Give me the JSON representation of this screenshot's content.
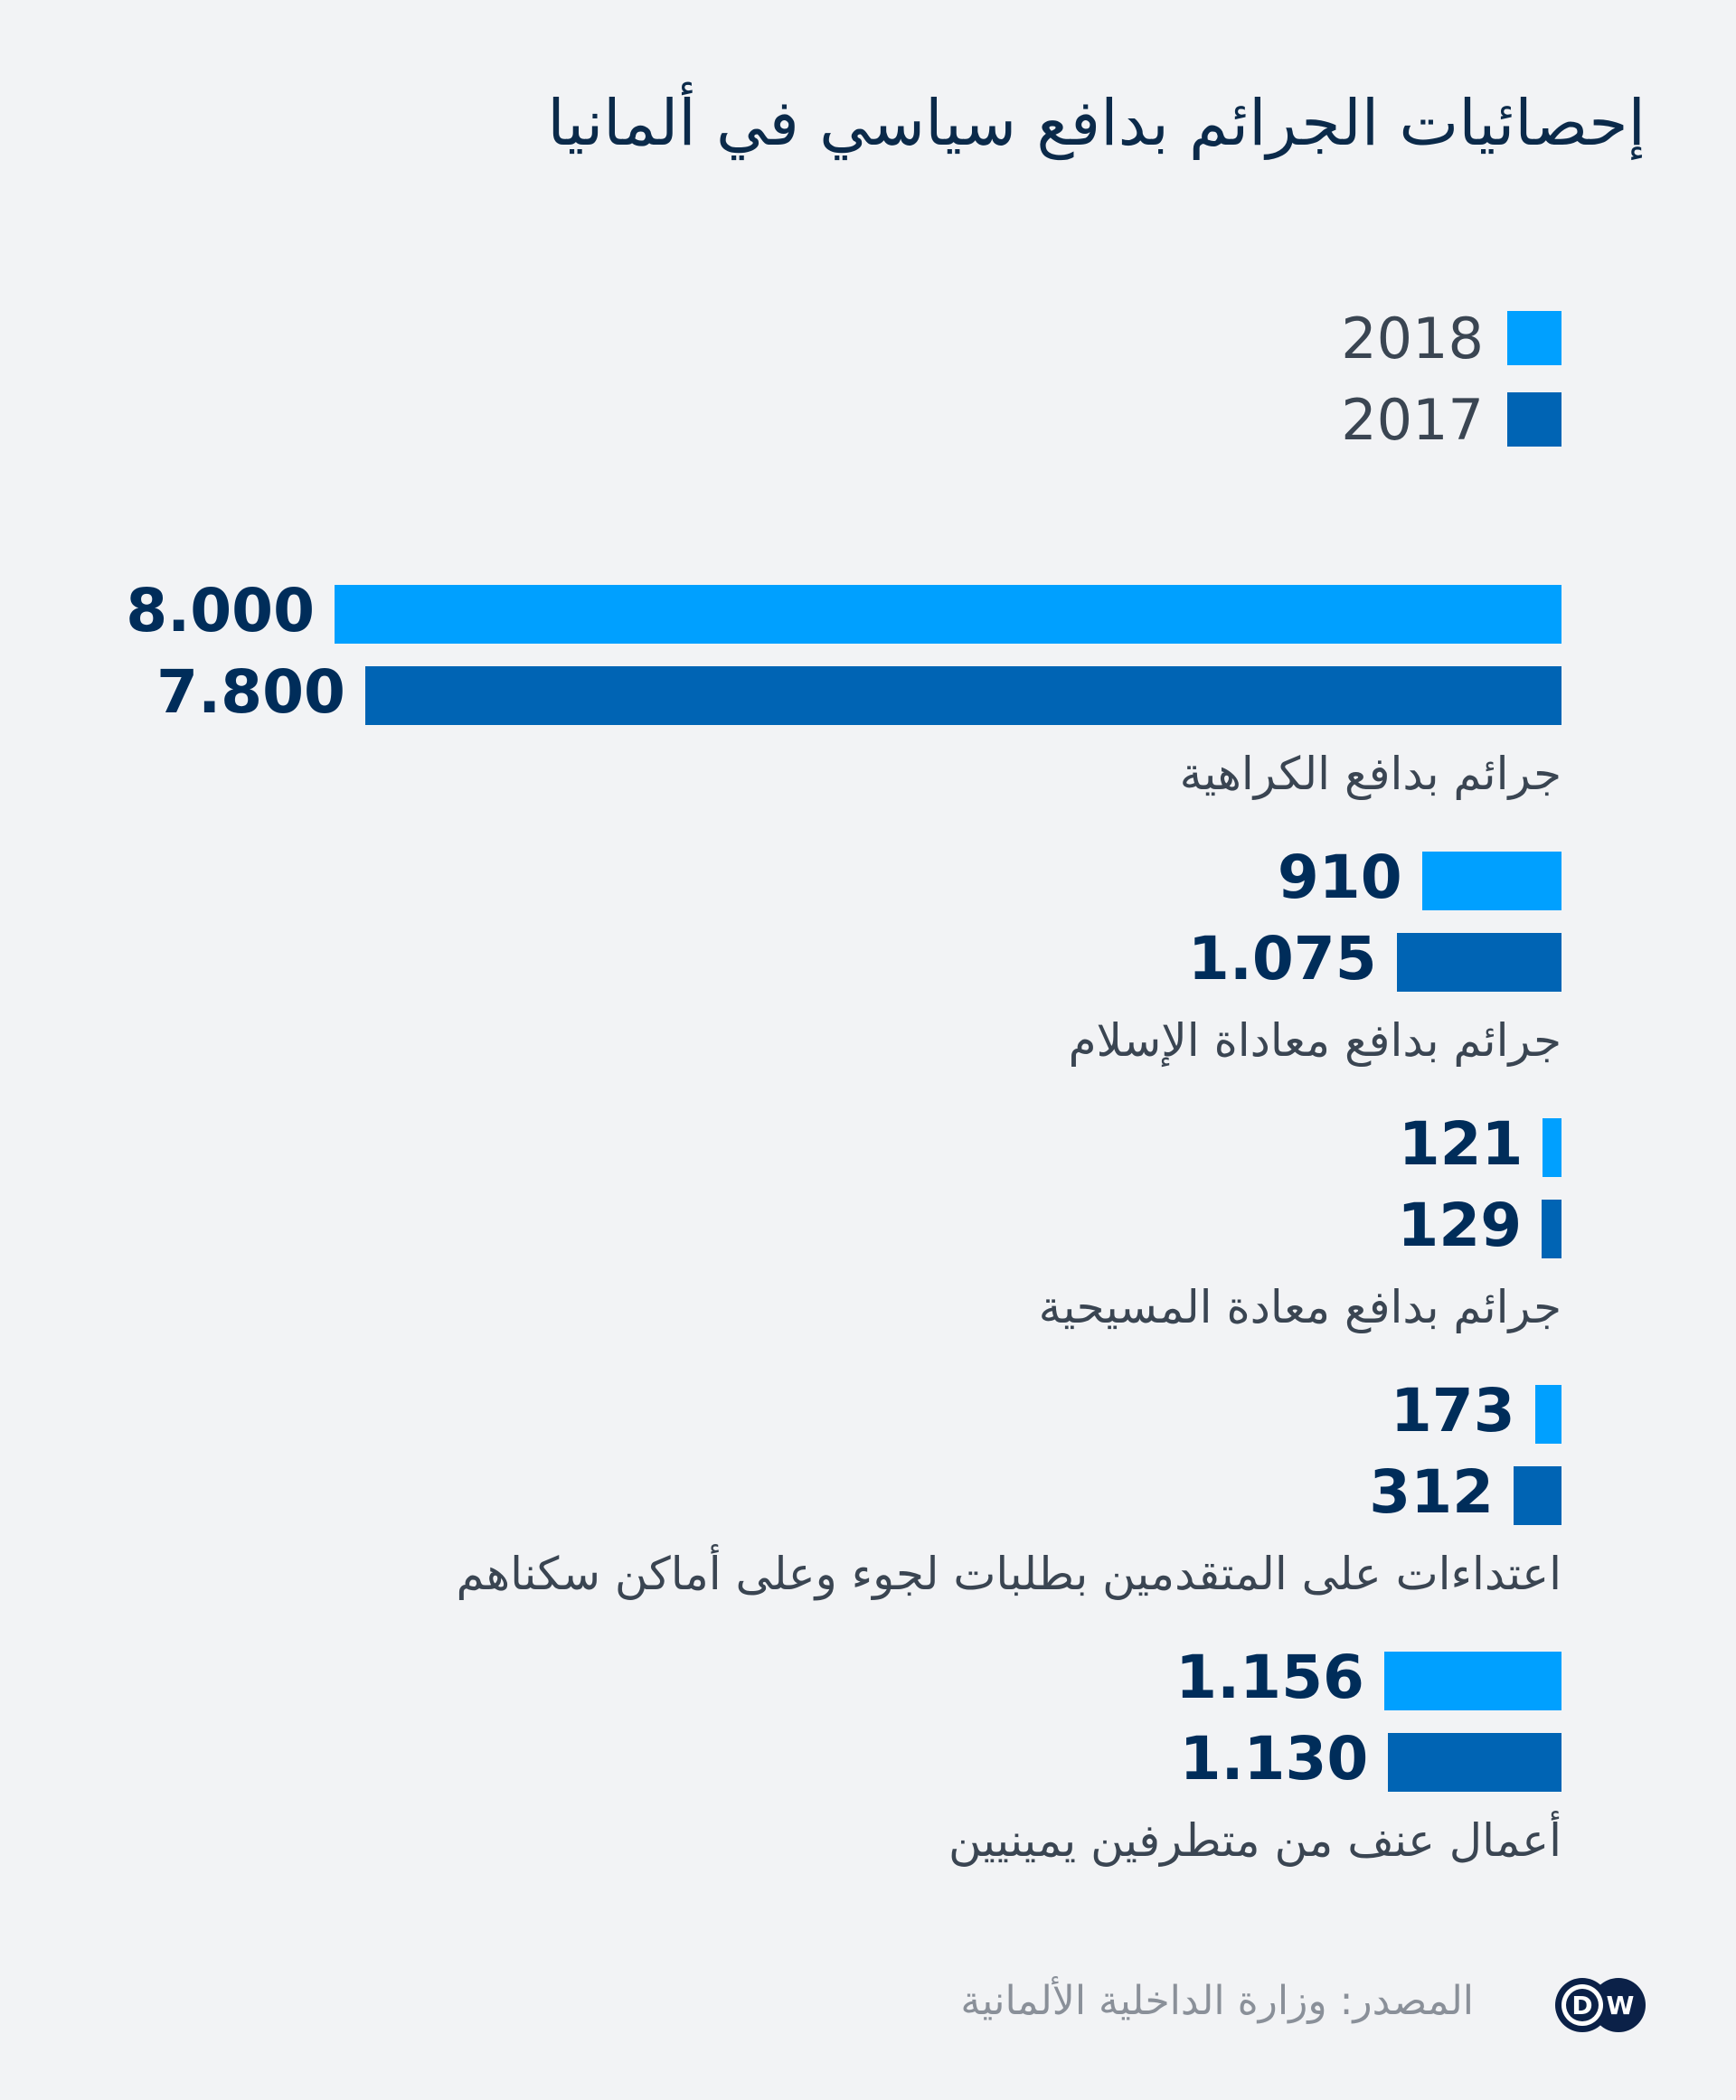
{
  "chart_data": {
    "type": "bar",
    "orientation": "horizontal",
    "title": "إحصائيات الجرائم بدافع سياسي في ألمانيا",
    "categories": [
      "جرائم بدافع الكراهية",
      "جرائم بدافع معاداة الإسلام",
      "جرائم بدافع معادة المسيحية",
      "اعتداءات على المتقدمين بطلبات لجوء وعلى أماكن سكناهم",
      "أعمال عنف من متطرفين يمينيين"
    ],
    "series": [
      {
        "name": "2018",
        "color": "#00a0ff",
        "values": [
          8000,
          910,
          121,
          173,
          1156
        ],
        "labels": [
          "8.000",
          "910",
          "121",
          "173",
          "1.156"
        ]
      },
      {
        "name": "2017",
        "color": "#0064b4",
        "values": [
          7800,
          1075,
          129,
          312,
          1130
        ],
        "labels": [
          "7.800",
          "1.075",
          "129",
          "312",
          "1.130"
        ]
      }
    ],
    "xlim": [
      0,
      8000
    ],
    "grid": false,
    "legend_position": "top-right",
    "source": "المصدر: وزارة الداخلية الألمانية"
  },
  "logo": {
    "text": "DW",
    "color": "#0b2148"
  }
}
